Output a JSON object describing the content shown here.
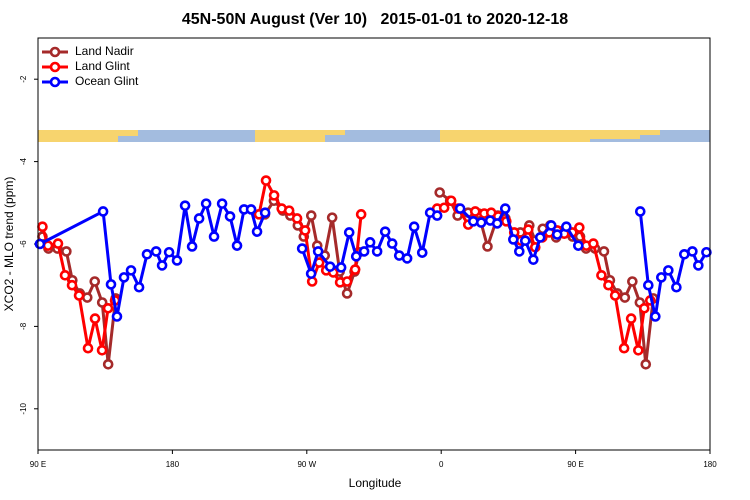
{
  "chart_data": {
    "type": "line",
    "title": "45N-50N August (Ver 10)   2015-01-01 to 2020-12-18",
    "x_label": "Longitude",
    "y_label": "XCO2 - MLO trend (ppm)",
    "xlim": [
      90,
      540
    ],
    "ylim": [
      -11,
      -1
    ],
    "xticks": [
      {
        "value": 90,
        "label": "90 E"
      },
      180,
      {
        "value": 270,
        "label": "90 W"
      },
      {
        "value": 360,
        "label": "0"
      },
      {
        "value": 450,
        "label": "90 E"
      },
      {
        "value": 540,
        "label": "180"
      }
    ],
    "yticks": [
      -10,
      -8,
      -6,
      -4,
      -2
    ],
    "legend": "top-left",
    "series": [
      {
        "name": "Land Nadir",
        "color": "#a52a2a",
        "x": [
          93,
          97,
          103,
          109,
          113,
          118,
          123,
          128,
          133,
          137,
          142,
          null,
          242,
          248,
          254,
          259,
          264,
          268,
          273,
          277,
          282,
          287,
          292,
          297,
          302,
          305,
          null,
          359,
          366,
          371,
          378,
          385,
          391,
          398,
          403,
          409,
          413,
          419,
          423,
          428,
          433,
          437,
          442,
          448,
          453,
          457,
          463,
          469,
          473,
          478,
          483,
          488,
          493,
          497,
          502
        ],
        "values": [
          -5.82,
          -6.11,
          -6.11,
          -6.18,
          -6.88,
          -7.2,
          -7.3,
          -6.91,
          -7.42,
          -8.92,
          -7.32,
          null,
          -5.28,
          -4.95,
          -5.19,
          -5.31,
          -5.55,
          -5.82,
          -5.31,
          -6.04,
          -6.28,
          -5.36,
          -6.67,
          -7.2,
          -6.67,
          -6.2,
          null,
          -4.75,
          -4.95,
          -5.31,
          -5.24,
          -5.26,
          -6.06,
          -5.31,
          -5.38,
          -5.84,
          -5.72,
          -5.55,
          -5.92,
          -5.63,
          -5.55,
          -5.84,
          -5.67,
          -5.82,
          -5.82,
          -6.11,
          -6.11,
          -6.18,
          -6.88,
          -7.2,
          -7.3,
          -6.91,
          -7.42,
          -8.92,
          -7.32
        ]
      },
      {
        "name": "Land Glint",
        "color": "#ff0000",
        "x": [
          93,
          96.7,
          103.4,
          108.1,
          112.8,
          117.5,
          123.5,
          128.2,
          132.9,
          136.9,
          141.6,
          null,
          238,
          242.7,
          248.1,
          253.2,
          258.2,
          263.5,
          268.9,
          273.6,
          278.3,
          283,
          287.7,
          292.3,
          297,
          302.4,
          306.4,
          null,
          357.3,
          362,
          366.7,
          371.4,
          378.1,
          382.8,
          388.8,
          393.5,
          398.2,
          403.6,
          408.9,
          413.6,
          418.3,
          423,
          427.7,
          432.4,
          437.7,
          442.4,
          447.8,
          452.5,
          457.2,
          461.9,
          467.3,
          472,
          476.5,
          482.5,
          487.2,
          492,
          496,
          500
        ],
        "values": [
          -5.58,
          -6.04,
          -5.99,
          -6.76,
          -7.0,
          -7.25,
          -8.53,
          -7.81,
          -8.58,
          -7.56,
          -7.37,
          null,
          -5.28,
          -4.46,
          -4.82,
          -5.14,
          -5.19,
          -5.38,
          -5.67,
          -6.91,
          -6.45,
          -6.64,
          -6.69,
          -6.93,
          -6.91,
          -6.62,
          -5.28,
          null,
          -5.14,
          -5.12,
          -4.95,
          -5.14,
          -5.53,
          -5.21,
          -5.26,
          -5.24,
          -5.33,
          -5.45,
          -5.72,
          -5.92,
          -5.65,
          -6.08,
          -5.84,
          -5.72,
          -5.67,
          -5.75,
          -5.72,
          -5.6,
          -6.04,
          -5.99,
          -6.76,
          -7.0,
          -7.25,
          -8.53,
          -7.81,
          -8.58,
          -7.56,
          -7.37
        ]
      },
      {
        "name": "Ocean Glint",
        "color": "#0000ff",
        "x": [
          91.3,
          133.6,
          138.9,
          142.9,
          147.6,
          152.3,
          157.7,
          163,
          169.1,
          173.1,
          177.8,
          183.1,
          188.5,
          193.2,
          197.9,
          202.6,
          207.9,
          213.3,
          218.6,
          223.3,
          228,
          232.7,
          236.7,
          242.1,
          null,
          266.9,
          272.9,
          277.6,
          285.6,
          293,
          298.4,
          303.1,
          308.4,
          312.4,
          317.1,
          322.5,
          327.2,
          331.9,
          337.2,
          341.9,
          347.3,
          352.6,
          357.3,
          null,
          372.7,
          381.5,
          386.8,
          392.8,
          397.5,
          402.9,
          408.3,
          412.3,
          416.3,
          421.7,
          426.3,
          433.7,
          437.7,
          443.8,
          451.8,
          null,
          493.3,
          498.7,
          503.4,
          507.4,
          512.1,
          517.5,
          522.8,
          528.2,
          532.2,
          537.6
        ],
        "values": [
          -6.0,
          -5.21,
          -6.98,
          -7.76,
          -6.81,
          -6.64,
          -7.05,
          -6.25,
          -6.18,
          -6.52,
          -6.2,
          -6.4,
          -5.07,
          -6.06,
          -5.38,
          -5.02,
          -5.82,
          -5.02,
          -5.33,
          -6.04,
          -5.16,
          -5.16,
          -5.7,
          -5.24,
          null,
          -6.11,
          -6.72,
          -6.18,
          -6.55,
          -6.57,
          -5.72,
          -6.3,
          -6.18,
          -5.96,
          -6.18,
          -5.7,
          -5.99,
          -6.28,
          -6.35,
          -5.58,
          -6.21,
          -5.24,
          -5.31,
          null,
          -5.14,
          -5.45,
          -5.48,
          -5.43,
          -5.5,
          -5.14,
          -5.89,
          -6.18,
          -5.92,
          -6.38,
          -5.84,
          -5.55,
          -5.77,
          -5.58,
          -6.04,
          null,
          -5.21,
          -7.0,
          -7.76,
          -6.81,
          -6.64,
          -7.05,
          -6.25,
          -6.18,
          -6.52,
          -6.2
        ]
      }
    ]
  }
}
